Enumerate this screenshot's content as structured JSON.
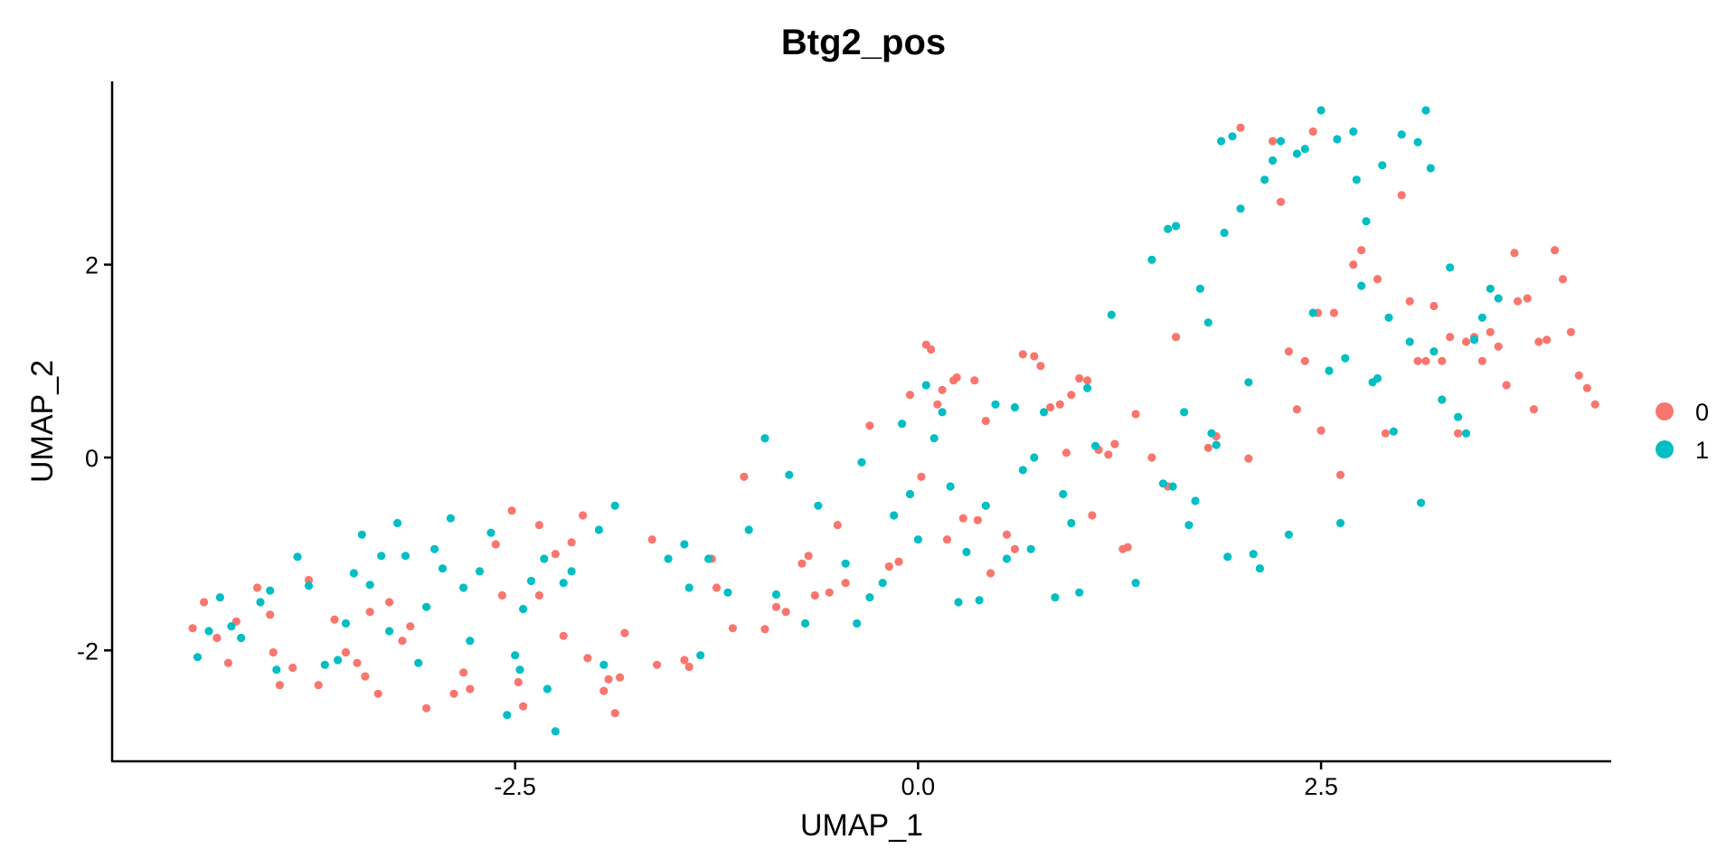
{
  "chart_data": {
    "type": "scatter",
    "title": "Btg2_pos",
    "xlabel": "UMAP_1",
    "ylabel": "UMAP_2",
    "xlim": [
      -5,
      4.3
    ],
    "ylim": [
      -3.15,
      3.9
    ],
    "xticks": [
      -2.5,
      0.0,
      2.5
    ],
    "xtick_labels": [
      "-2.5",
      "0.0",
      "2.5"
    ],
    "yticks": [
      -2,
      0,
      2
    ],
    "ytick_labels": [
      "-2",
      "0",
      "2"
    ],
    "grid": false,
    "legend": {
      "placement": "right",
      "title": ""
    },
    "series": [
      {
        "name": "0",
        "color": "#F8766D",
        "points": [
          [
            -4.5,
            -1.77
          ],
          [
            -4.43,
            -1.5
          ],
          [
            -4.35,
            -1.87
          ],
          [
            -4.28,
            -2.13
          ],
          [
            -4.23,
            -1.7
          ],
          [
            -4.1,
            -1.35
          ],
          [
            -4.02,
            -1.63
          ],
          [
            -4.0,
            -2.02
          ],
          [
            -3.96,
            -2.36
          ],
          [
            -3.88,
            -2.18
          ],
          [
            -3.78,
            -1.27
          ],
          [
            -3.72,
            -2.36
          ],
          [
            -3.62,
            -1.68
          ],
          [
            -3.55,
            -2.02
          ],
          [
            -3.48,
            -2.13
          ],
          [
            -3.43,
            -2.27
          ],
          [
            -3.4,
            -1.6
          ],
          [
            -3.35,
            -2.45
          ],
          [
            -3.28,
            -1.5
          ],
          [
            -3.2,
            -1.9
          ],
          [
            -3.15,
            -1.75
          ],
          [
            -3.05,
            -2.6
          ],
          [
            -2.88,
            -2.45
          ],
          [
            -2.82,
            -2.23
          ],
          [
            -2.78,
            -2.4
          ],
          [
            -2.62,
            -0.9
          ],
          [
            -2.58,
            -1.43
          ],
          [
            -2.52,
            -0.55
          ],
          [
            -2.48,
            -2.33
          ],
          [
            -2.45,
            -2.58
          ],
          [
            -2.35,
            -0.7
          ],
          [
            -2.35,
            -1.43
          ],
          [
            -2.25,
            -1.0
          ],
          [
            -2.2,
            -1.85
          ],
          [
            -2.15,
            -0.88
          ],
          [
            -2.08,
            -0.6
          ],
          [
            -2.05,
            -2.08
          ],
          [
            -1.95,
            -2.42
          ],
          [
            -1.92,
            -2.3
          ],
          [
            -1.88,
            -2.65
          ],
          [
            -1.85,
            -2.28
          ],
          [
            -1.82,
            -1.82
          ],
          [
            -1.65,
            -0.85
          ],
          [
            -1.62,
            -2.15
          ],
          [
            -1.45,
            -2.1
          ],
          [
            -1.42,
            -2.17
          ],
          [
            -1.28,
            -1.05
          ],
          [
            -1.25,
            -1.35
          ],
          [
            -1.15,
            -1.77
          ],
          [
            -1.08,
            -0.2
          ],
          [
            -0.95,
            -1.78
          ],
          [
            -0.88,
            -1.55
          ],
          [
            -0.82,
            -1.6
          ],
          [
            -0.72,
            -1.1
          ],
          [
            -0.68,
            -1.02
          ],
          [
            -0.64,
            -1.43
          ],
          [
            -0.55,
            -1.4
          ],
          [
            -0.5,
            -0.7
          ],
          [
            -0.45,
            -1.3
          ],
          [
            -0.3,
            0.33
          ],
          [
            -0.18,
            -1.13
          ],
          [
            -0.12,
            -1.08
          ],
          [
            -0.05,
            0.65
          ],
          [
            0.02,
            -0.2
          ],
          [
            0.05,
            1.17
          ],
          [
            0.08,
            1.12
          ],
          [
            0.12,
            0.55
          ],
          [
            0.15,
            0.7
          ],
          [
            0.18,
            -0.85
          ],
          [
            0.22,
            0.8
          ],
          [
            0.24,
            0.83
          ],
          [
            0.28,
            -0.63
          ],
          [
            0.35,
            0.8
          ],
          [
            0.37,
            -0.65
          ],
          [
            0.42,
            0.38
          ],
          [
            0.45,
            -1.2
          ],
          [
            0.55,
            -0.8
          ],
          [
            0.6,
            -0.95
          ],
          [
            0.65,
            1.07
          ],
          [
            0.72,
            1.05
          ],
          [
            0.76,
            0.95
          ],
          [
            0.82,
            0.52
          ],
          [
            0.88,
            0.55
          ],
          [
            0.92,
            0.05
          ],
          [
            0.95,
            0.65
          ],
          [
            1.0,
            0.82
          ],
          [
            1.05,
            0.8
          ],
          [
            1.08,
            -0.6
          ],
          [
            1.12,
            0.08
          ],
          [
            1.18,
            0.03
          ],
          [
            1.22,
            0.14
          ],
          [
            1.27,
            -0.95
          ],
          [
            1.3,
            -0.93
          ],
          [
            1.35,
            0.45
          ],
          [
            1.45,
            0.0
          ],
          [
            1.55,
            -0.3
          ],
          [
            1.6,
            1.25
          ],
          [
            1.8,
            0.1
          ],
          [
            1.85,
            0.22
          ],
          [
            2.0,
            3.42
          ],
          [
            2.05,
            -0.01
          ],
          [
            2.2,
            3.28
          ],
          [
            2.25,
            2.65
          ],
          [
            2.3,
            1.1
          ],
          [
            2.35,
            0.5
          ],
          [
            2.4,
            1.0
          ],
          [
            2.45,
            3.38
          ],
          [
            2.48,
            1.5
          ],
          [
            2.5,
            0.28
          ],
          [
            2.58,
            1.5
          ],
          [
            2.62,
            -0.18
          ],
          [
            2.7,
            2.0
          ],
          [
            2.75,
            2.15
          ],
          [
            2.85,
            1.85
          ],
          [
            2.9,
            0.25
          ],
          [
            3.0,
            2.72
          ],
          [
            3.05,
            1.62
          ],
          [
            3.1,
            1.0
          ],
          [
            3.15,
            1.0
          ],
          [
            3.2,
            1.57
          ],
          [
            3.25,
            1.0
          ],
          [
            3.3,
            1.25
          ],
          [
            3.35,
            0.25
          ],
          [
            3.4,
            1.2
          ],
          [
            3.45,
            1.25
          ],
          [
            3.5,
            1.0
          ],
          [
            3.55,
            1.3
          ],
          [
            3.6,
            1.15
          ],
          [
            3.65,
            0.75
          ],
          [
            3.7,
            2.12
          ],
          [
            3.72,
            1.62
          ],
          [
            3.78,
            1.65
          ],
          [
            3.82,
            0.5
          ],
          [
            3.85,
            1.2
          ],
          [
            3.9,
            1.22
          ],
          [
            3.95,
            2.15
          ],
          [
            4.0,
            1.85
          ],
          [
            4.05,
            1.3
          ],
          [
            4.1,
            0.85
          ],
          [
            4.15,
            0.72
          ],
          [
            4.2,
            0.55
          ]
        ]
      },
      {
        "name": "1",
        "color": "#00BFC4",
        "points": [
          [
            -4.47,
            -2.07
          ],
          [
            -4.4,
            -1.8
          ],
          [
            -4.33,
            -1.45
          ],
          [
            -4.26,
            -1.75
          ],
          [
            -4.2,
            -1.87
          ],
          [
            -4.08,
            -1.5
          ],
          [
            -4.02,
            -1.38
          ],
          [
            -3.98,
            -2.2
          ],
          [
            -3.85,
            -1.03
          ],
          [
            -3.78,
            -1.33
          ],
          [
            -3.68,
            -2.15
          ],
          [
            -3.6,
            -2.1
          ],
          [
            -3.55,
            -1.72
          ],
          [
            -3.5,
            -1.2
          ],
          [
            -3.45,
            -0.8
          ],
          [
            -3.4,
            -1.32
          ],
          [
            -3.33,
            -1.02
          ],
          [
            -3.28,
            -1.8
          ],
          [
            -3.23,
            -0.68
          ],
          [
            -3.18,
            -1.02
          ],
          [
            -3.1,
            -2.13
          ],
          [
            -3.05,
            -1.55
          ],
          [
            -3.0,
            -0.95
          ],
          [
            -2.95,
            -1.15
          ],
          [
            -2.9,
            -0.63
          ],
          [
            -2.82,
            -1.35
          ],
          [
            -2.78,
            -1.9
          ],
          [
            -2.72,
            -1.18
          ],
          [
            -2.65,
            -0.78
          ],
          [
            -2.55,
            -2.67
          ],
          [
            -2.5,
            -2.05
          ],
          [
            -2.47,
            -2.2
          ],
          [
            -2.45,
            -1.57
          ],
          [
            -2.4,
            -1.28
          ],
          [
            -2.32,
            -1.05
          ],
          [
            -2.3,
            -2.4
          ],
          [
            -2.25,
            -2.84
          ],
          [
            -2.2,
            -1.3
          ],
          [
            -2.15,
            -1.18
          ],
          [
            -1.98,
            -0.75
          ],
          [
            -1.95,
            -2.15
          ],
          [
            -1.88,
            -0.5
          ],
          [
            -1.55,
            -1.05
          ],
          [
            -1.45,
            -0.9
          ],
          [
            -1.42,
            -1.35
          ],
          [
            -1.35,
            -2.05
          ],
          [
            -1.3,
            -1.05
          ],
          [
            -1.18,
            -1.4
          ],
          [
            -1.05,
            -0.75
          ],
          [
            -0.95,
            0.2
          ],
          [
            -0.88,
            -1.42
          ],
          [
            -0.8,
            -0.18
          ],
          [
            -0.7,
            -1.72
          ],
          [
            -0.62,
            -0.5
          ],
          [
            -0.45,
            -1.1
          ],
          [
            -0.38,
            -1.72
          ],
          [
            -0.35,
            -0.05
          ],
          [
            -0.3,
            -1.45
          ],
          [
            -0.22,
            -1.3
          ],
          [
            -0.15,
            -0.6
          ],
          [
            -0.1,
            0.35
          ],
          [
            -0.05,
            -0.38
          ],
          [
            0.0,
            -0.85
          ],
          [
            0.05,
            0.75
          ],
          [
            0.1,
            0.2
          ],
          [
            0.15,
            0.47
          ],
          [
            0.2,
            -0.3
          ],
          [
            0.25,
            -1.5
          ],
          [
            0.3,
            -0.98
          ],
          [
            0.38,
            -1.48
          ],
          [
            0.42,
            -0.5
          ],
          [
            0.48,
            0.55
          ],
          [
            0.55,
            -1.05
          ],
          [
            0.6,
            0.52
          ],
          [
            0.65,
            -0.13
          ],
          [
            0.7,
            -0.95
          ],
          [
            0.72,
            0.0
          ],
          [
            0.78,
            0.47
          ],
          [
            0.85,
            -1.45
          ],
          [
            0.9,
            -0.38
          ],
          [
            0.95,
            -0.68
          ],
          [
            1.0,
            -1.4
          ],
          [
            1.05,
            0.72
          ],
          [
            1.1,
            0.12
          ],
          [
            1.2,
            1.48
          ],
          [
            1.35,
            -1.3
          ],
          [
            1.45,
            2.05
          ],
          [
            1.52,
            -0.27
          ],
          [
            1.55,
            2.37
          ],
          [
            1.58,
            -0.3
          ],
          [
            1.6,
            2.4
          ],
          [
            1.65,
            0.47
          ],
          [
            1.68,
            -0.7
          ],
          [
            1.72,
            -0.45
          ],
          [
            1.75,
            1.75
          ],
          [
            1.8,
            1.4
          ],
          [
            1.82,
            0.25
          ],
          [
            1.85,
            0.13
          ],
          [
            1.88,
            3.28
          ],
          [
            1.9,
            2.33
          ],
          [
            1.92,
            -1.03
          ],
          [
            1.95,
            3.33
          ],
          [
            2.0,
            2.58
          ],
          [
            2.05,
            0.78
          ],
          [
            2.08,
            -1.0
          ],
          [
            2.12,
            -1.15
          ],
          [
            2.15,
            2.88
          ],
          [
            2.2,
            3.08
          ],
          [
            2.25,
            3.28
          ],
          [
            2.3,
            -0.8
          ],
          [
            2.35,
            3.15
          ],
          [
            2.4,
            3.2
          ],
          [
            2.45,
            1.5
          ],
          [
            2.5,
            3.6
          ],
          [
            2.55,
            0.9
          ],
          [
            2.6,
            3.3
          ],
          [
            2.62,
            -0.68
          ],
          [
            2.65,
            1.03
          ],
          [
            2.7,
            3.38
          ],
          [
            2.72,
            2.88
          ],
          [
            2.75,
            1.78
          ],
          [
            2.78,
            2.45
          ],
          [
            2.82,
            0.78
          ],
          [
            2.85,
            0.82
          ],
          [
            2.88,
            3.03
          ],
          [
            2.92,
            1.45
          ],
          [
            2.95,
            0.27
          ],
          [
            3.0,
            3.35
          ],
          [
            3.05,
            1.2
          ],
          [
            3.1,
            3.27
          ],
          [
            3.12,
            -0.47
          ],
          [
            3.15,
            3.6
          ],
          [
            3.18,
            3.0
          ],
          [
            3.2,
            1.1
          ],
          [
            3.25,
            0.6
          ],
          [
            3.3,
            1.97
          ],
          [
            3.35,
            0.42
          ],
          [
            3.4,
            0.25
          ],
          [
            3.45,
            1.22
          ],
          [
            3.5,
            1.45
          ],
          [
            3.55,
            1.75
          ],
          [
            3.6,
            1.65
          ]
        ]
      }
    ]
  }
}
